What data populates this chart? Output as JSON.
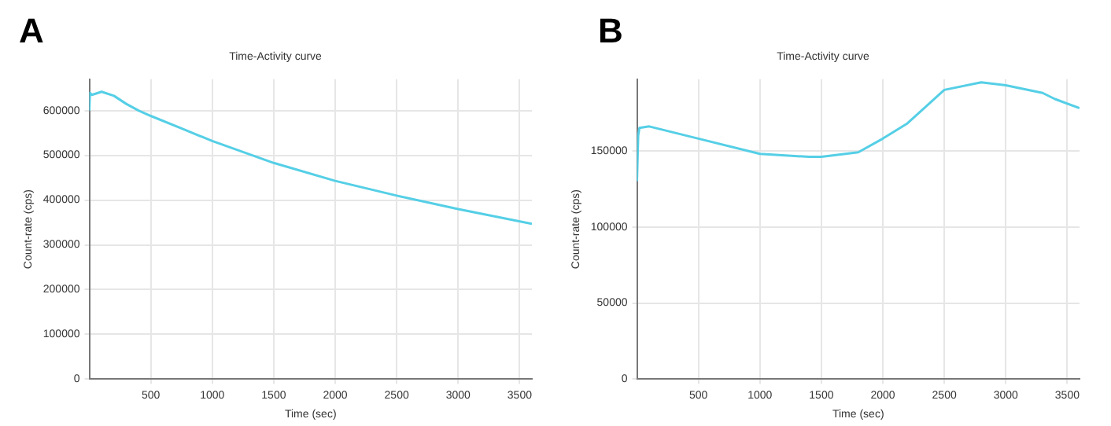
{
  "chart_data": [
    {
      "type": "line",
      "title": "Time-Activity curve",
      "xlabel": "Time (sec)",
      "ylabel": "Count-rate (cps)",
      "annotations": [
        "A"
      ],
      "grid": true,
      "xlim": [
        0,
        3600
      ],
      "xticks": [
        500,
        1000,
        1500,
        2000,
        2500,
        3000,
        3500
      ],
      "ylim": [
        0,
        670000
      ],
      "yticks": [
        0,
        100000,
        200000,
        300000,
        400000,
        500000,
        600000
      ],
      "x": [
        0,
        5,
        20,
        100,
        200,
        300,
        400,
        500,
        750,
        1000,
        1500,
        2000,
        2500,
        3000,
        3600
      ],
      "series": [
        {
          "color": "#55cfe6",
          "values": [
            600000,
            640000,
            635000,
            642000,
            633000,
            615000,
            600000,
            588000,
            560000,
            532000,
            483000,
            443000,
            410000,
            380000,
            347000
          ]
        }
      ]
    },
    {
      "type": "line",
      "title": "Time-Activity curve",
      "xlabel": "Time (sec)",
      "ylabel": "Count-rate (cps)",
      "annotations": [
        "B"
      ],
      "grid": true,
      "xlim": [
        0,
        3600
      ],
      "xticks": [
        500,
        1000,
        1500,
        2000,
        2500,
        3000,
        3500
      ],
      "ylim": [
        0,
        197000
      ],
      "yticks": [
        0,
        50000,
        100000,
        150000
      ],
      "x": [
        0,
        10,
        20,
        100,
        500,
        1000,
        1400,
        1500,
        1800,
        2000,
        2200,
        2500,
        2800,
        3000,
        3300,
        3400,
        3600
      ],
      "series": [
        {
          "color": "#55cfe6",
          "values": [
            130000,
            160000,
            165000,
            166000,
            158000,
            148000,
            146000,
            146000,
            149000,
            158000,
            168000,
            190000,
            195000,
            193000,
            188000,
            184000,
            178000
          ]
        }
      ]
    }
  ]
}
